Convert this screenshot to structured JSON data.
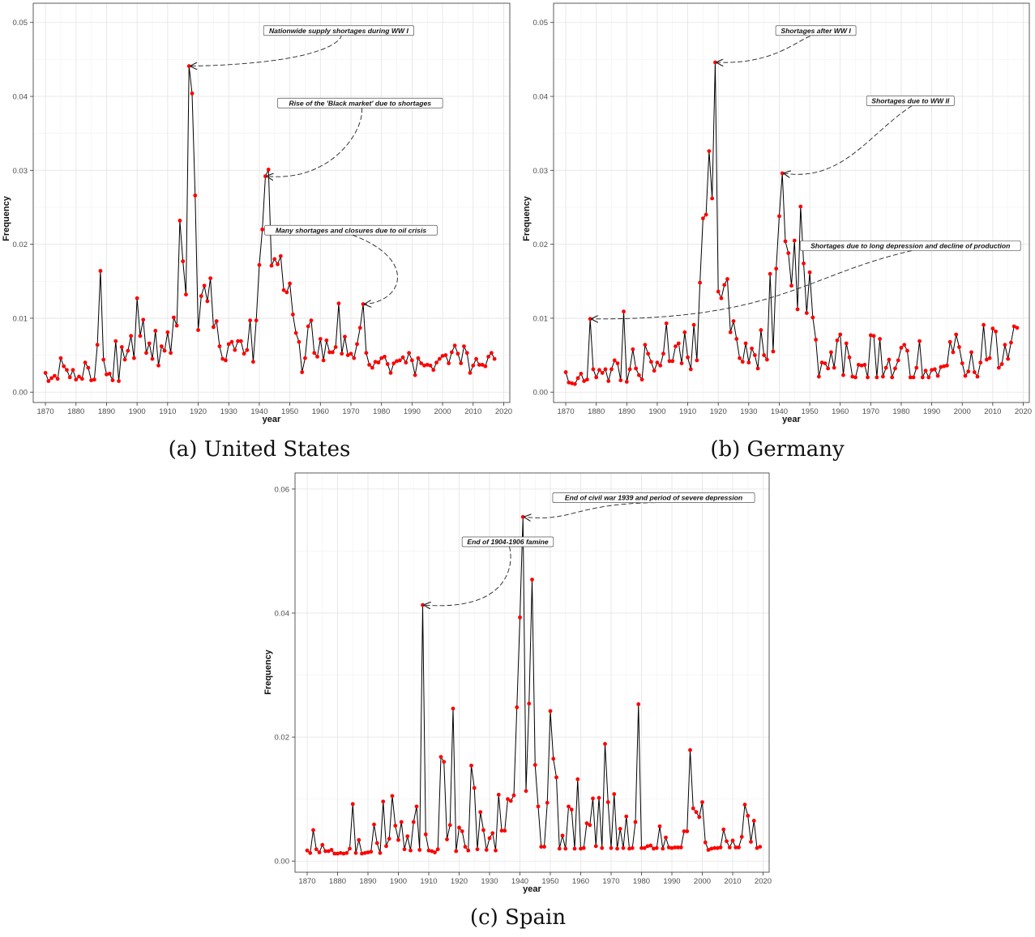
{
  "chart_data": [
    {
      "type": "line",
      "caption": "(a) United States",
      "xlabel": "year",
      "ylabel": "Frequency",
      "xlim": [
        1866,
        2022
      ],
      "ylim": [
        -0.0014,
        0.0526
      ],
      "xticks": [
        1870,
        1880,
        1890,
        1900,
        1910,
        1920,
        1930,
        1940,
        1950,
        1960,
        1970,
        1980,
        1990,
        2000,
        2010,
        2020
      ],
      "yticks": [
        0,
        0.01,
        0.02,
        0.03,
        0.04,
        0.05
      ],
      "ytick_labels": [
        "0.00",
        "0.01",
        "0.02",
        "0.03",
        "0.04",
        "0.05"
      ],
      "grid": true,
      "line_color": "#000000",
      "point_color": "#ff0000",
      "values": [
        0.0026,
        0.0015,
        0.0019,
        0.0022,
        0.0018,
        0.0046,
        0.0035,
        0.003,
        0.002,
        0.003,
        0.0017,
        0.0021,
        0.0018,
        0.004,
        0.0033,
        0.0016,
        0.0017,
        0.0064,
        0.0164,
        0.0044,
        0.0024,
        0.0025,
        0.0016,
        0.0069,
        0.0015,
        0.0061,
        0.0044,
        0.0056,
        0.0076,
        0.0046,
        0.0127,
        0.0076,
        0.0098,
        0.0053,
        0.0066,
        0.0045,
        0.0083,
        0.0036,
        0.0062,
        0.0056,
        0.0081,
        0.0053,
        0.0101,
        0.009,
        0.0232,
        0.0177,
        0.0132,
        0.0441,
        0.0404,
        0.0266,
        0.0084,
        0.013,
        0.0144,
        0.0123,
        0.0154,
        0.0088,
        0.0096,
        0.0062,
        0.0045,
        0.0043,
        0.0065,
        0.0068,
        0.0057,
        0.0069,
        0.0069,
        0.0052,
        0.0057,
        0.0097,
        0.0041,
        0.0097,
        0.0172,
        0.022,
        0.0292,
        0.0301,
        0.0171,
        0.018,
        0.0173,
        0.0184,
        0.0138,
        0.0135,
        0.0147,
        0.0105,
        0.008,
        0.0068,
        0.0027,
        0.0046,
        0.0089,
        0.0097,
        0.0053,
        0.0048,
        0.0072,
        0.0043,
        0.007,
        0.0054,
        0.0054,
        0.0061,
        0.012,
        0.0052,
        0.0075,
        0.005,
        0.0052,
        0.0046,
        0.0065,
        0.0087,
        0.0119,
        0.0053,
        0.0037,
        0.0033,
        0.0041,
        0.004,
        0.0046,
        0.0048,
        0.0038,
        0.0026,
        0.0039,
        0.0042,
        0.0043,
        0.0047,
        0.004,
        0.0053,
        0.0043,
        0.0023,
        0.0046,
        0.0039,
        0.0036,
        0.0037,
        0.0036,
        0.003,
        0.004,
        0.0045,
        0.0049,
        0.005,
        0.0039,
        0.0054,
        0.0063,
        0.0052,
        0.0039,
        0.0062,
        0.0053,
        0.0026,
        0.0036,
        0.0045,
        0.0037,
        0.0037,
        0.0035,
        0.0048,
        0.0053,
        0.0045
      ],
      "x_start": 1870,
      "annotations": [
        {
          "text": "Nationwide supply shortages during WW I",
          "target": [
            1917,
            0.0441
          ],
          "label_pos": [
            1966,
            0.0489
          ]
        },
        {
          "text": "Rise of the 'Black market' due to shortages",
          "target": [
            1942,
            0.0292
          ],
          "label_pos": [
            1973,
            0.0391
          ]
        },
        {
          "text": "Many shortages and closures due to oil crisis",
          "target": [
            1974,
            0.0119
          ],
          "label_pos": [
            1970,
            0.0219
          ]
        }
      ]
    },
    {
      "type": "line",
      "caption": "(b) Germany",
      "xlabel": "year",
      "ylabel": "Frequency",
      "xlim": [
        1866,
        2022
      ],
      "ylim": [
        -0.0014,
        0.0526
      ],
      "xticks": [
        1870,
        1880,
        1890,
        1900,
        1910,
        1920,
        1930,
        1940,
        1950,
        1960,
        1970,
        1980,
        1990,
        2000,
        2010,
        2020
      ],
      "yticks": [
        0,
        0.01,
        0.02,
        0.03,
        0.04,
        0.05
      ],
      "ytick_labels": [
        "0.00",
        "0.01",
        "0.02",
        "0.03",
        "0.04",
        "0.05"
      ],
      "grid": true,
      "line_color": "#000000",
      "point_color": "#ff0000",
      "values": [
        0.0027,
        0.0013,
        0.0012,
        0.0011,
        0.0019,
        0.0025,
        0.0015,
        0.0017,
        0.0099,
        0.0031,
        0.002,
        0.003,
        0.0026,
        0.0031,
        0.0015,
        0.0031,
        0.0043,
        0.0039,
        0.0016,
        0.0109,
        0.0014,
        0.0031,
        0.0058,
        0.0032,
        0.0023,
        0.0017,
        0.0064,
        0.0052,
        0.0041,
        0.0029,
        0.004,
        0.0036,
        0.0052,
        0.0093,
        0.0042,
        0.0042,
        0.0062,
        0.0066,
        0.0039,
        0.0081,
        0.0047,
        0.0031,
        0.0091,
        0.0043,
        0.0148,
        0.0235,
        0.024,
        0.0326,
        0.0262,
        0.0446,
        0.0136,
        0.0127,
        0.0145,
        0.0153,
        0.0081,
        0.0096,
        0.0072,
        0.0046,
        0.0041,
        0.0066,
        0.004,
        0.0059,
        0.005,
        0.0032,
        0.0084,
        0.005,
        0.0044,
        0.016,
        0.0055,
        0.0167,
        0.0238,
        0.0296,
        0.0204,
        0.0188,
        0.0144,
        0.0205,
        0.0112,
        0.0251,
        0.0174,
        0.0107,
        0.0162,
        0.0101,
        0.0071,
        0.0021,
        0.004,
        0.0039,
        0.0032,
        0.0054,
        0.0033,
        0.007,
        0.0078,
        0.0023,
        0.0066,
        0.0047,
        0.0021,
        0.002,
        0.0037,
        0.0036,
        0.0037,
        0.002,
        0.0077,
        0.0076,
        0.002,
        0.0072,
        0.0021,
        0.0033,
        0.0044,
        0.002,
        0.0032,
        0.0043,
        0.006,
        0.0064,
        0.0056,
        0.002,
        0.002,
        0.0033,
        0.0069,
        0.002,
        0.0029,
        0.002,
        0.003,
        0.0031,
        0.0022,
        0.0034,
        0.0035,
        0.0036,
        0.0068,
        0.0054,
        0.0078,
        0.0061,
        0.0039,
        0.0022,
        0.0028,
        0.0054,
        0.0027,
        0.0021,
        0.004,
        0.0091,
        0.0044,
        0.0046,
        0.0086,
        0.0082,
        0.0033,
        0.0038,
        0.0064,
        0.0045,
        0.0067,
        0.0089,
        0.0087
      ],
      "x_start": 1870,
      "annotations": [
        {
          "text": "Shortages after WW I",
          "target": [
            1919,
            0.0446
          ],
          "label_pos": [
            1952,
            0.0489
          ]
        },
        {
          "text": "Shortages due to WW II",
          "target": [
            1941,
            0.0296
          ],
          "label_pos": [
            1983,
            0.0394
          ]
        },
        {
          "text": "Shortages due to long depression and decline of production",
          "target": [
            1878,
            0.0099
          ],
          "label_pos": [
            1983,
            0.0198
          ]
        }
      ]
    },
    {
      "type": "line",
      "caption": "(c) Spain",
      "xlabel": "year",
      "ylabel": "Frequency",
      "xlim": [
        1866,
        2022
      ],
      "ylim": [
        -0.0018,
        0.0626
      ],
      "xticks": [
        1870,
        1880,
        1890,
        1900,
        1910,
        1920,
        1930,
        1940,
        1950,
        1960,
        1970,
        1980,
        1990,
        2000,
        2010,
        2020
      ],
      "yticks": [
        0,
        0.02,
        0.04,
        0.06
      ],
      "ytick_labels": [
        "0.00",
        "0.02",
        "0.04",
        "0.06"
      ],
      "grid": true,
      "line_color": "#000000",
      "point_color": "#ff0000",
      "values": [
        0.0017,
        0.0013,
        0.005,
        0.0019,
        0.0014,
        0.0026,
        0.0016,
        0.0016,
        0.0018,
        0.0012,
        0.0012,
        0.0013,
        0.0012,
        0.0013,
        0.002,
        0.0092,
        0.0013,
        0.0034,
        0.0012,
        0.0013,
        0.0014,
        0.0015,
        0.0059,
        0.0029,
        0.0013,
        0.0096,
        0.0024,
        0.0036,
        0.0105,
        0.0057,
        0.0034,
        0.0063,
        0.0019,
        0.004,
        0.0017,
        0.0063,
        0.0088,
        0.0018,
        0.0413,
        0.0043,
        0.0017,
        0.0016,
        0.0014,
        0.0019,
        0.0168,
        0.016,
        0.0035,
        0.0058,
        0.0246,
        0.0016,
        0.0054,
        0.0048,
        0.0023,
        0.0017,
        0.0154,
        0.0118,
        0.0019,
        0.0079,
        0.005,
        0.0018,
        0.0037,
        0.0045,
        0.0017,
        0.0107,
        0.0049,
        0.0049,
        0.01,
        0.0097,
        0.0106,
        0.0248,
        0.0393,
        0.0555,
        0.0113,
        0.0254,
        0.0454,
        0.0155,
        0.0088,
        0.0023,
        0.0023,
        0.0094,
        0.0242,
        0.0165,
        0.0135,
        0.002,
        0.0041,
        0.002,
        0.0088,
        0.0083,
        0.002,
        0.0132,
        0.002,
        0.0021,
        0.0061,
        0.0058,
        0.0101,
        0.0024,
        0.0102,
        0.0021,
        0.0189,
        0.0095,
        0.0021,
        0.0108,
        0.002,
        0.0052,
        0.0021,
        0.0072,
        0.002,
        0.0021,
        0.0063,
        0.0253,
        0.0021,
        0.0021,
        0.0024,
        0.0025,
        0.002,
        0.0021,
        0.0056,
        0.002,
        0.0038,
        0.0022,
        0.0021,
        0.0022,
        0.0022,
        0.0022,
        0.0048,
        0.0048,
        0.0179,
        0.0085,
        0.0079,
        0.0071,
        0.0095,
        0.003,
        0.0018,
        0.002,
        0.0021,
        0.0021,
        0.0022,
        0.0051,
        0.0032,
        0.0022,
        0.0033,
        0.0022,
        0.0022,
        0.0039,
        0.0091,
        0.0073,
        0.0031,
        0.0065,
        0.0021,
        0.0023
      ],
      "x_start": 1870,
      "annotations": [
        {
          "text": "End of civil war 1939 and period of severe depression",
          "target": [
            1941,
            0.0555
          ],
          "label_pos": [
            1984,
            0.0586
          ]
        },
        {
          "text": "End of 1904-1906 famine",
          "target": [
            1908,
            0.0413
          ],
          "label_pos": [
            1936,
            0.0515
          ]
        }
      ]
    }
  ]
}
